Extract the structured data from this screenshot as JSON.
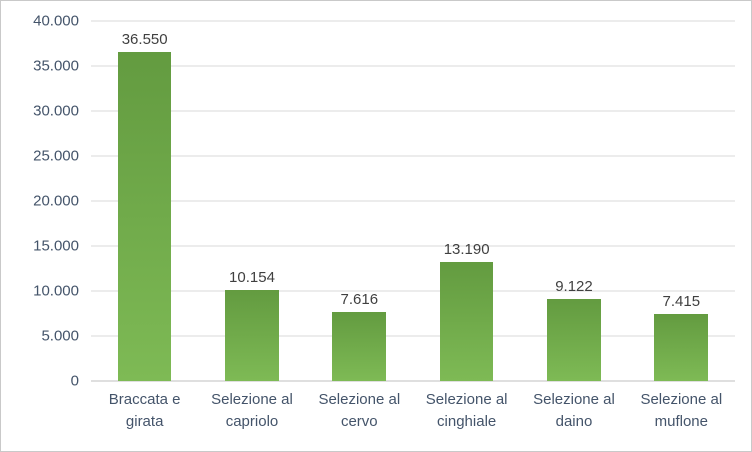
{
  "chart_data": {
    "type": "bar",
    "title": "",
    "xlabel": "",
    "ylabel": "",
    "categories": [
      "Braccata e girata",
      "Selezione al capriolo",
      "Selezione al cervo",
      "Selezione al cinghiale",
      "Selezione al daino",
      "Selezione al muflone"
    ],
    "values": [
      36550,
      10154,
      7616,
      13190,
      9122,
      7415
    ],
    "value_labels": [
      "36.550",
      "10.154",
      "7.616",
      "13.190",
      "9.122",
      "7.415"
    ],
    "ylim": [
      0,
      40000
    ],
    "grid": "horizontal",
    "legend": "none",
    "yticks": [
      {
        "value": 0,
        "label": "0"
      },
      {
        "value": 5000,
        "label": "5.000"
      },
      {
        "value": 10000,
        "label": "10.000"
      },
      {
        "value": 15000,
        "label": "15.000"
      },
      {
        "value": 20000,
        "label": "20.000"
      },
      {
        "value": 25000,
        "label": "25.000"
      },
      {
        "value": 30000,
        "label": "30.000"
      },
      {
        "value": 35000,
        "label": "35.000"
      },
      {
        "value": 40000,
        "label": "40.000"
      }
    ],
    "colors": {
      "bar_gradient_top": "#639b40",
      "bar_gradient_bottom": "#7eba55",
      "gridline": "#d9d9d9",
      "axis_line": "#bfbfbf",
      "tick_label": "#44546a",
      "data_label": "#404040",
      "border": "#c9c9c9",
      "background": "#ffffff"
    }
  }
}
